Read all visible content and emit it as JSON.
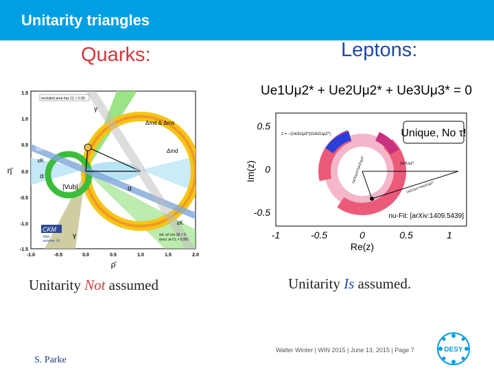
{
  "header": {
    "title": "Unitarity triangles",
    "bg_color": "#009fe3"
  },
  "quarks": {
    "title": "Quarks:",
    "plot": {
      "x_ticks": [
        "-1.0",
        "-0.5",
        "0.0",
        "0.5",
        "1.0",
        "1.5",
        "2.0"
      ],
      "y_ticks": [
        "1.5",
        "1.0",
        "0.5",
        "0.0",
        "-0.5",
        "-1.0",
        "-1.5"
      ],
      "x_axis_label": "ρ̄",
      "y_axis_label": "η̄",
      "legend": "excluded area has CL > 0.95",
      "labels": {
        "gamma_top": "γ",
        "dm": "Δmd & Δms",
        "dmd": "Δmd",
        "sin2b": "sin 2β",
        "epsk_left": "εK",
        "alpha_left": "α",
        "vub": "|Vub|",
        "alpha_right": "α",
        "epsk_bottom": "εK",
        "gamma_bottom": "γ",
        "sol_note_1": "sol. w/ cos 2β < 0",
        "sol_note_2": "(excl. at CL > 0.95)",
        "ckm_badge": "CKM",
        "ckm_fitter": "fitter",
        "ckm_sub": "summer 14"
      }
    },
    "caption_pre": "Unitarity ",
    "caption_em": "Not",
    "caption_post": " assumed"
  },
  "leptons": {
    "title": "Leptons:",
    "equation": "Ue1Uμ2* + Ue2Uμ2* + Ue3Uμ3* = 0",
    "plot": {
      "x_ticks": [
        "-1",
        "-0.5",
        "0",
        "0.5",
        "1"
      ],
      "y_ticks": [
        "0.5",
        "0",
        "-0.5"
      ],
      "x_axis_label": "Re(z)",
      "y_axis_label": "Im(z)",
      "z_def": "z = −(Ue3Uμ3*)/(Ue2Uμ2*)",
      "unique_box": "Unique, No τ!",
      "citation": "nu-Fit: [arXiv:1409.5439]",
      "vec_label_1": "Ue3Uμ3*/Ue2Uμ2*",
      "vec_label_2": "Ue1Uμ1*/Ue2Uμ2*",
      "base_label": "Ue2Uμ2*"
    },
    "caption_pre": "Unitarity ",
    "caption_em": "Is",
    "caption_post": " assumed."
  },
  "footer": {
    "text": "Walter Winter  |  WIN 2015  |  June 13, 2015  |  Page 7",
    "author": "S. Parke",
    "logo": "DESY"
  }
}
